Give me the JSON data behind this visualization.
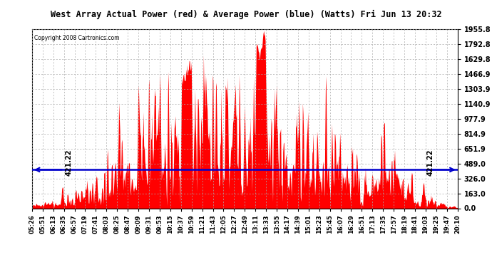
{
  "title": "West Array Actual Power (red) & Average Power (blue) (Watts) Fri Jun 13 20:32",
  "copyright": "Copyright 2008 Cartronics.com",
  "avg_power": 421.22,
  "y_max": 1955.8,
  "y_min": 0.0,
  "y_ticks": [
    0.0,
    163.0,
    326.0,
    489.0,
    651.9,
    814.9,
    977.9,
    1140.9,
    1303.9,
    1466.9,
    1629.8,
    1792.8,
    1955.8
  ],
  "x_labels": [
    "05:26",
    "05:51",
    "06:13",
    "06:35",
    "06:57",
    "07:19",
    "07:41",
    "08:03",
    "08:25",
    "08:47",
    "09:09",
    "09:31",
    "09:53",
    "10:15",
    "10:37",
    "10:59",
    "11:21",
    "11:43",
    "12:05",
    "12:27",
    "12:49",
    "13:11",
    "13:33",
    "13:55",
    "14:17",
    "14:39",
    "15:01",
    "15:23",
    "15:45",
    "16:07",
    "16:29",
    "16:51",
    "17:13",
    "17:35",
    "17:57",
    "18:19",
    "18:41",
    "19:03",
    "19:25",
    "19:47",
    "20:10"
  ],
  "bg_color": "#ffffff",
  "grid_color": "#aaaaaa",
  "fill_color": "#ff0000",
  "line_color": "#0000cc",
  "title_bg": "#c0c0c0"
}
